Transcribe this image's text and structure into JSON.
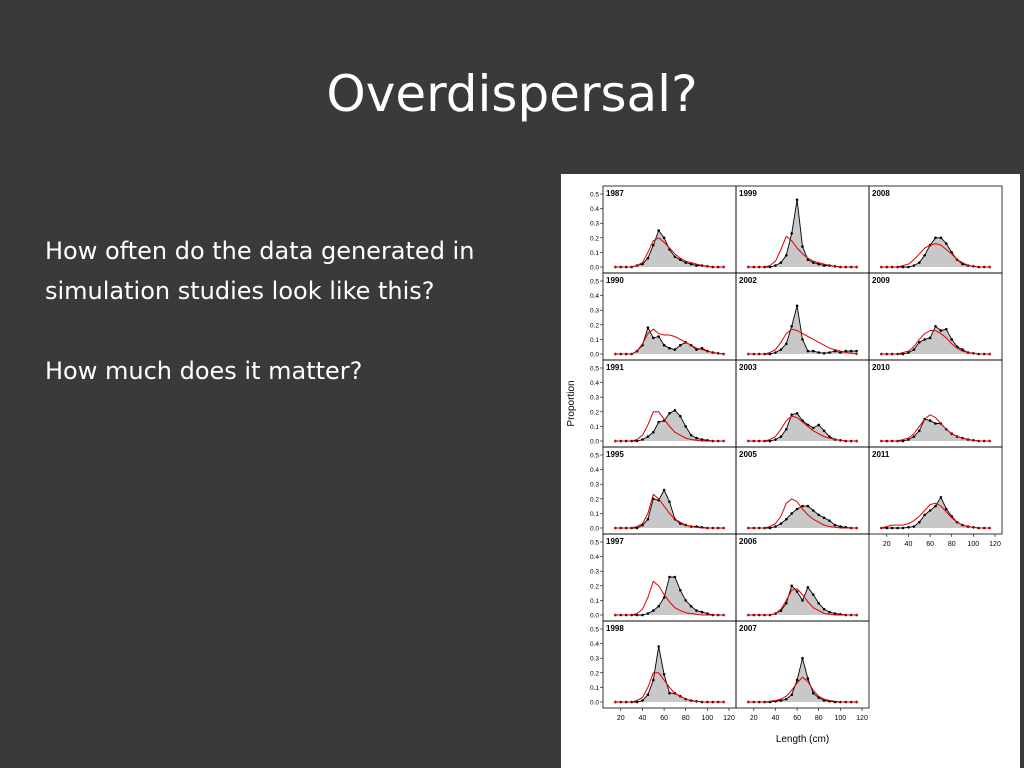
{
  "slide": {
    "title": "Overdispersal?",
    "paragraphs": [
      "How often do the data generated in simulation studies look like this?",
      "How much does it matter?"
    ]
  },
  "colors": {
    "background": "#3a3a3a",
    "text": "#ffffff",
    "observed_fill": "#c8c8c8",
    "observed_line": "#000000",
    "fitted_line": "#e00000"
  },
  "chart_data": {
    "type": "area",
    "title": "",
    "xlabel": "Length (cm)",
    "ylabel": "Proportion",
    "xlim": [
      10,
      120
    ],
    "ylim": [
      0,
      0.5
    ],
    "x_ticks": [
      "20",
      "40",
      "60",
      "80",
      "100",
      "120"
    ],
    "y_ticks": [
      "0.0",
      "0.1",
      "0.2",
      "0.3",
      "0.4",
      "0.5"
    ],
    "x": [
      15,
      20,
      25,
      30,
      35,
      40,
      45,
      50,
      55,
      60,
      65,
      70,
      75,
      80,
      85,
      90,
      95,
      100,
      105,
      110,
      115
    ],
    "series_types": [
      "observed (points, shaded)",
      "fitted (red line)"
    ],
    "panels": [
      {
        "year": "1987",
        "col": 0,
        "row": 0,
        "observed": [
          0,
          0,
          0,
          0,
          0.01,
          0.02,
          0.06,
          0.15,
          0.25,
          0.2,
          0.12,
          0.07,
          0.05,
          0.03,
          0.02,
          0.01,
          0.01,
          0.005,
          0,
          0,
          0
        ],
        "fitted": [
          0,
          0,
          0,
          0,
          0.01,
          0.03,
          0.1,
          0.18,
          0.2,
          0.17,
          0.13,
          0.09,
          0.06,
          0.04,
          0.03,
          0.02,
          0.01,
          0.005,
          0,
          0,
          0
        ]
      },
      {
        "year": "1990",
        "col": 0,
        "row": 1,
        "observed": [
          0,
          0,
          0,
          0,
          0.02,
          0.06,
          0.18,
          0.11,
          0.12,
          0.06,
          0.04,
          0.03,
          0.06,
          0.08,
          0.06,
          0.03,
          0.04,
          0.02,
          0.01,
          0.005,
          0
        ],
        "fitted": [
          0,
          0,
          0,
          0,
          0.02,
          0.07,
          0.14,
          0.17,
          0.14,
          0.13,
          0.13,
          0.12,
          0.1,
          0.08,
          0.06,
          0.04,
          0.03,
          0.02,
          0.01,
          0.005,
          0
        ]
      },
      {
        "year": "1991",
        "col": 0,
        "row": 2,
        "observed": [
          0,
          0,
          0,
          0,
          0,
          0.01,
          0.03,
          0.06,
          0.13,
          0.14,
          0.19,
          0.21,
          0.17,
          0.1,
          0.04,
          0.02,
          0.01,
          0.005,
          0,
          0,
          0
        ],
        "fitted": [
          0,
          0,
          0,
          0,
          0.01,
          0.04,
          0.11,
          0.2,
          0.2,
          0.15,
          0.1,
          0.06,
          0.04,
          0.02,
          0.01,
          0.005,
          0,
          0,
          0,
          0,
          0
        ]
      },
      {
        "year": "1995",
        "col": 0,
        "row": 3,
        "observed": [
          0,
          0,
          0,
          0,
          0,
          0.02,
          0.06,
          0.2,
          0.19,
          0.26,
          0.18,
          0.06,
          0.03,
          0.02,
          0.01,
          0.01,
          0.005,
          0,
          0,
          0,
          0
        ],
        "fitted": [
          0,
          0,
          0,
          0,
          0.01,
          0.03,
          0.1,
          0.23,
          0.2,
          0.15,
          0.1,
          0.06,
          0.04,
          0.02,
          0.01,
          0.005,
          0,
          0,
          0,
          0,
          0
        ]
      },
      {
        "year": "1997",
        "col": 0,
        "row": 4,
        "observed": [
          0,
          0,
          0,
          0,
          0,
          0,
          0.01,
          0.03,
          0.06,
          0.12,
          0.26,
          0.26,
          0.17,
          0.1,
          0.06,
          0.03,
          0.02,
          0.01,
          0,
          0,
          0
        ],
        "fitted": [
          0,
          0,
          0,
          0,
          0.01,
          0.04,
          0.12,
          0.23,
          0.2,
          0.14,
          0.09,
          0.05,
          0.03,
          0.015,
          0.01,
          0.005,
          0,
          0,
          0,
          0,
          0
        ]
      },
      {
        "year": "1998",
        "col": 0,
        "row": 5,
        "observed": [
          0,
          0,
          0,
          0,
          0,
          0.01,
          0.05,
          0.15,
          0.38,
          0.19,
          0.06,
          0.06,
          0.04,
          0.02,
          0.01,
          0.005,
          0,
          0,
          0,
          0,
          0
        ],
        "fitted": [
          0,
          0,
          0,
          0,
          0.01,
          0.03,
          0.1,
          0.2,
          0.2,
          0.15,
          0.1,
          0.06,
          0.04,
          0.02,
          0.01,
          0.005,
          0,
          0,
          0,
          0,
          0
        ]
      },
      {
        "year": "1999",
        "col": 1,
        "row": 0,
        "observed": [
          0,
          0,
          0,
          0,
          0,
          0.01,
          0.03,
          0.08,
          0.23,
          0.46,
          0.14,
          0.05,
          0.03,
          0.02,
          0.01,
          0.01,
          0.005,
          0,
          0,
          0,
          0
        ],
        "fitted": [
          0,
          0,
          0,
          0,
          0.01,
          0.04,
          0.12,
          0.21,
          0.18,
          0.13,
          0.09,
          0.06,
          0.04,
          0.03,
          0.02,
          0.01,
          0.005,
          0,
          0,
          0,
          0
        ]
      },
      {
        "year": "2002",
        "col": 1,
        "row": 1,
        "observed": [
          0,
          0,
          0,
          0,
          0,
          0.01,
          0.03,
          0.07,
          0.19,
          0.33,
          0.1,
          0.02,
          0.02,
          0.01,
          0.005,
          0.01,
          0.02,
          0.01,
          0.02,
          0.02,
          0.02
        ],
        "fitted": [
          0,
          0,
          0,
          0,
          0.01,
          0.03,
          0.08,
          0.14,
          0.17,
          0.16,
          0.14,
          0.12,
          0.1,
          0.08,
          0.06,
          0.04,
          0.03,
          0.02,
          0.01,
          0.005,
          0
        ]
      },
      {
        "year": "2003",
        "col": 1,
        "row": 2,
        "observed": [
          0,
          0,
          0,
          0,
          0,
          0.01,
          0.03,
          0.08,
          0.18,
          0.19,
          0.14,
          0.11,
          0.09,
          0.11,
          0.07,
          0.03,
          0.01,
          0.005,
          0,
          0,
          0
        ],
        "fitted": [
          0,
          0,
          0,
          0,
          0.01,
          0.03,
          0.08,
          0.14,
          0.17,
          0.16,
          0.13,
          0.1,
          0.07,
          0.05,
          0.03,
          0.02,
          0.01,
          0.005,
          0,
          0,
          0
        ]
      },
      {
        "year": "2005",
        "col": 1,
        "row": 3,
        "observed": [
          0,
          0,
          0,
          0,
          0,
          0.01,
          0.03,
          0.06,
          0.1,
          0.13,
          0.15,
          0.15,
          0.12,
          0.09,
          0.07,
          0.05,
          0.02,
          0.01,
          0.005,
          0,
          0
        ],
        "fitted": [
          0,
          0,
          0,
          0,
          0.01,
          0.03,
          0.08,
          0.17,
          0.2,
          0.18,
          0.13,
          0.09,
          0.06,
          0.04,
          0.02,
          0.01,
          0.005,
          0,
          0,
          0,
          0
        ]
      },
      {
        "year": "2006",
        "col": 1,
        "row": 4,
        "observed": [
          0,
          0,
          0,
          0,
          0,
          0.01,
          0.03,
          0.08,
          0.2,
          0.16,
          0.1,
          0.19,
          0.14,
          0.08,
          0.04,
          0.02,
          0.01,
          0.005,
          0,
          0,
          0
        ],
        "fitted": [
          0,
          0,
          0,
          0,
          0,
          0.01,
          0.04,
          0.1,
          0.17,
          0.18,
          0.14,
          0.09,
          0.05,
          0.03,
          0.01,
          0.005,
          0,
          0,
          0,
          0,
          0
        ]
      },
      {
        "year": "2007",
        "col": 1,
        "row": 5,
        "observed": [
          0,
          0,
          0,
          0,
          0,
          0.005,
          0.01,
          0.02,
          0.05,
          0.15,
          0.3,
          0.16,
          0.06,
          0.03,
          0.01,
          0.005,
          0,
          0,
          0,
          0,
          0
        ],
        "fitted": [
          0,
          0,
          0,
          0,
          0.005,
          0.01,
          0.02,
          0.04,
          0.08,
          0.13,
          0.17,
          0.14,
          0.08,
          0.04,
          0.02,
          0.01,
          0.005,
          0,
          0,
          0,
          0
        ]
      },
      {
        "year": "2008",
        "col": 2,
        "row": 0,
        "observed": [
          0,
          0,
          0,
          0,
          0,
          0,
          0.01,
          0.03,
          0.08,
          0.15,
          0.2,
          0.2,
          0.16,
          0.1,
          0.05,
          0.02,
          0.01,
          0.005,
          0,
          0,
          0
        ],
        "fitted": [
          0,
          0,
          0,
          0,
          0.01,
          0.02,
          0.05,
          0.09,
          0.13,
          0.15,
          0.16,
          0.15,
          0.12,
          0.09,
          0.05,
          0.03,
          0.01,
          0.005,
          0,
          0,
          0
        ]
      },
      {
        "year": "2009",
        "col": 2,
        "row": 1,
        "observed": [
          0,
          0,
          0,
          0,
          0,
          0.01,
          0.03,
          0.08,
          0.1,
          0.11,
          0.19,
          0.16,
          0.17,
          0.1,
          0.05,
          0.03,
          0.01,
          0.005,
          0,
          0,
          0
        ],
        "fitted": [
          0,
          0,
          0,
          0,
          0.01,
          0.02,
          0.05,
          0.1,
          0.14,
          0.16,
          0.16,
          0.14,
          0.11,
          0.07,
          0.04,
          0.02,
          0.01,
          0.005,
          0,
          0,
          0
        ]
      },
      {
        "year": "2010",
        "col": 2,
        "row": 2,
        "observed": [
          0,
          0,
          0,
          0,
          0,
          0.01,
          0.03,
          0.07,
          0.15,
          0.14,
          0.12,
          0.12,
          0.08,
          0.05,
          0.03,
          0.02,
          0.01,
          0.005,
          0,
          0,
          0
        ],
        "fitted": [
          0,
          0,
          0,
          0,
          0.01,
          0.02,
          0.05,
          0.1,
          0.15,
          0.18,
          0.16,
          0.12,
          0.08,
          0.05,
          0.03,
          0.02,
          0.01,
          0.005,
          0,
          0,
          0
        ]
      },
      {
        "year": "2011",
        "col": 2,
        "row": 3,
        "observed": [
          0,
          0,
          0,
          0,
          0,
          0.005,
          0.01,
          0.04,
          0.09,
          0.12,
          0.15,
          0.21,
          0.13,
          0.08,
          0.04,
          0.02,
          0.01,
          0.005,
          0,
          0,
          0
        ],
        "fitted": [
          0,
          0.01,
          0.02,
          0.02,
          0.02,
          0.03,
          0.05,
          0.08,
          0.12,
          0.16,
          0.17,
          0.15,
          0.11,
          0.07,
          0.04,
          0.02,
          0.01,
          0.005,
          0,
          0,
          0
        ]
      }
    ],
    "grid": false,
    "legend": "none"
  }
}
